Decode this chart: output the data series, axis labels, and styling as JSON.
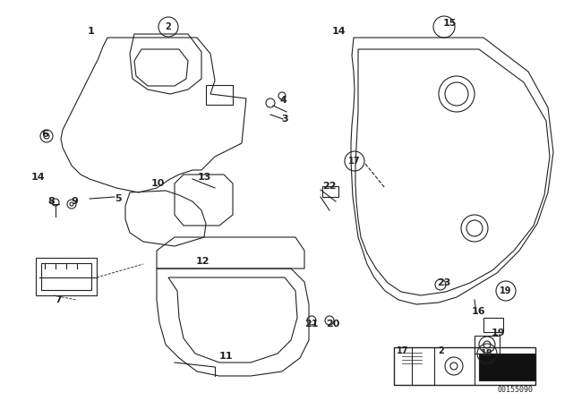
{
  "bg_color": "#ffffff",
  "diagram_id": "00155090",
  "circle_labels": [
    2,
    17,
    18,
    19
  ]
}
